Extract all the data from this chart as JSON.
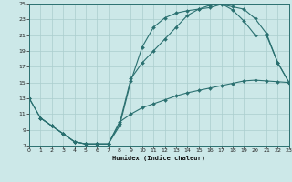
{
  "xlabel": "Humidex (Indice chaleur)",
  "xlim": [
    0,
    23
  ],
  "ylim": [
    7,
    25
  ],
  "xticks": [
    0,
    1,
    2,
    3,
    4,
    5,
    6,
    7,
    8,
    9,
    10,
    11,
    12,
    13,
    14,
    15,
    16,
    17,
    18,
    19,
    20,
    21,
    22,
    23
  ],
  "yticks": [
    7,
    9,
    11,
    13,
    15,
    17,
    19,
    21,
    23,
    25
  ],
  "bg_color": "#cce8e8",
  "grid_color": "#aacece",
  "line_color": "#2a7070",
  "curve1_x": [
    0,
    1,
    2,
    3,
    4,
    5,
    6,
    7,
    8,
    9,
    10,
    11,
    12,
    13,
    14,
    15,
    16,
    17,
    18,
    19,
    20,
    21,
    22,
    23
  ],
  "curve1_y": [
    13,
    10.5,
    9.5,
    8.5,
    7.5,
    7.2,
    7.2,
    7.2,
    9.5,
    15.2,
    19.5,
    22.0,
    23.2,
    23.8,
    24.1,
    24.3,
    24.5,
    24.9,
    24.6,
    24.3,
    23.1,
    21.2,
    17.5,
    15.0
  ],
  "curve2_x": [
    0,
    1,
    2,
    3,
    4,
    5,
    6,
    7,
    8,
    9,
    10,
    11,
    12,
    13,
    14,
    15,
    16,
    17,
    18,
    19,
    20,
    21,
    22,
    23
  ],
  "curve2_y": [
    13,
    10.5,
    9.5,
    8.5,
    7.5,
    7.2,
    7.2,
    7.2,
    10.0,
    11.0,
    11.8,
    12.3,
    12.8,
    13.3,
    13.7,
    14.0,
    14.3,
    14.6,
    14.9,
    15.2,
    15.3,
    15.2,
    15.1,
    15.0
  ],
  "curve3_x": [
    1,
    2,
    3,
    4,
    5,
    6,
    7,
    8,
    9,
    10,
    11,
    12,
    13,
    14,
    15,
    16,
    17,
    18,
    19,
    20,
    21,
    22,
    23
  ],
  "curve3_y": [
    10.5,
    9.5,
    8.5,
    7.5,
    7.2,
    7.2,
    7.2,
    9.8,
    15.5,
    17.5,
    19.0,
    20.5,
    22.0,
    23.5,
    24.3,
    24.8,
    25.0,
    24.2,
    22.8,
    21.0,
    21.0,
    17.5,
    15.0
  ]
}
